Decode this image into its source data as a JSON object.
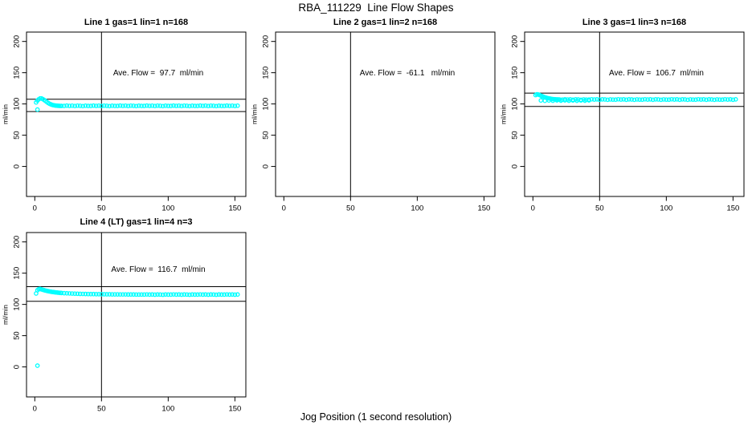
{
  "figure": {
    "main_title": "RBA_111229  Line Flow Shapes",
    "x_axis_label": "Jog Position (1 second resolution)",
    "colors": {
      "points": "#00ffff",
      "axis": "#000000",
      "background": "#ffffff"
    }
  },
  "chart_data": [
    {
      "type": "scatter",
      "title": "Line 1 gas=1 lin=1 n=168",
      "ylabel": "ml/min",
      "annotation": "Ave. Flow =  97.7  ml/min",
      "ave_flow": 97.7,
      "xlim": [
        -6.2,
        158.2
      ],
      "ylim": [
        -48,
        215
      ],
      "xticks": [
        0,
        50,
        100,
        150
      ],
      "yticks": [
        0,
        50,
        100,
        150,
        200
      ],
      "vline_x": 50,
      "hlines": [
        107.5,
        87.9
      ],
      "points": [
        [
          2,
          91
        ],
        [
          1,
          102.5
        ],
        [
          2,
          105.5
        ],
        [
          3,
          107.5
        ],
        [
          4,
          108.8
        ],
        [
          5,
          108.9
        ],
        [
          6,
          107.8
        ],
        [
          7,
          106.4
        ],
        [
          8,
          104.8
        ],
        [
          9,
          103.2
        ],
        [
          10,
          101.7
        ],
        [
          11,
          100.4
        ],
        [
          12,
          99.4
        ],
        [
          13,
          98.6
        ],
        [
          14,
          98
        ],
        [
          15,
          97.6
        ],
        [
          16,
          97.3
        ],
        [
          17,
          97.1
        ],
        [
          18,
          97
        ],
        [
          19,
          96.9
        ],
        [
          20,
          96.9
        ],
        [
          22,
          96.8
        ],
        [
          24,
          97.3
        ],
        [
          26,
          96.9
        ],
        [
          28,
          97.2
        ],
        [
          30,
          96.7
        ],
        [
          32,
          97.2
        ],
        [
          34,
          97
        ],
        [
          36,
          96.6
        ],
        [
          38,
          97.1
        ],
        [
          40,
          96.8
        ],
        [
          42,
          96.8
        ],
        [
          44,
          97.3
        ],
        [
          46,
          96.9
        ],
        [
          48,
          97.2
        ],
        [
          50,
          96.7
        ],
        [
          52,
          97.2
        ],
        [
          54,
          97
        ],
        [
          56,
          96.6
        ],
        [
          58,
          97.1
        ],
        [
          60,
          96.8
        ],
        [
          62,
          96.8
        ],
        [
          64,
          97.3
        ],
        [
          66,
          96.9
        ],
        [
          68,
          97.2
        ],
        [
          70,
          96.7
        ],
        [
          72,
          97.2
        ],
        [
          74,
          97
        ],
        [
          76,
          96.6
        ],
        [
          78,
          97.1
        ],
        [
          80,
          96.8
        ],
        [
          82,
          96.8
        ],
        [
          84,
          97.3
        ],
        [
          86,
          96.9
        ],
        [
          88,
          97.2
        ],
        [
          90,
          96.7
        ],
        [
          92,
          97.2
        ],
        [
          94,
          97
        ],
        [
          96,
          96.6
        ],
        [
          98,
          97.1
        ],
        [
          100,
          96.8
        ],
        [
          102,
          96.8
        ],
        [
          104,
          97.3
        ],
        [
          106,
          96.9
        ],
        [
          108,
          97.2
        ],
        [
          110,
          96.7
        ],
        [
          112,
          97.2
        ],
        [
          114,
          97
        ],
        [
          116,
          96.6
        ],
        [
          118,
          97.1
        ],
        [
          120,
          96.8
        ],
        [
          122,
          96.8
        ],
        [
          124,
          97.3
        ],
        [
          126,
          96.9
        ],
        [
          128,
          97.2
        ],
        [
          130,
          96.7
        ],
        [
          132,
          97.2
        ],
        [
          134,
          97
        ],
        [
          136,
          96.6
        ],
        [
          138,
          97.1
        ],
        [
          140,
          96.8
        ],
        [
          142,
          96.8
        ],
        [
          144,
          97.3
        ],
        [
          146,
          96.9
        ],
        [
          148,
          97.2
        ],
        [
          150,
          96.7
        ],
        [
          152,
          97.2
        ]
      ]
    },
    {
      "type": "scatter",
      "title": "Line 2 gas=1 lin=2 n=168",
      "ylabel": "ml/min",
      "annotation": "Ave. Flow =  -61.1   ml/min",
      "ave_flow": -61.1,
      "xlim": [
        -6.2,
        158.2
      ],
      "ylim": [
        -48,
        215
      ],
      "xticks": [
        0,
        50,
        100,
        150
      ],
      "yticks": [
        0,
        50,
        100,
        150,
        200
      ],
      "vline_x": 50,
      "hlines": [],
      "points": []
    },
    {
      "type": "scatter",
      "title": "Line 3 gas=1 lin=3 n=168",
      "ylabel": "ml/min",
      "annotation": "Ave. Flow =  106.7  ml/min",
      "ave_flow": 106.7,
      "xlim": [
        -6.2,
        158.2
      ],
      "ylim": [
        -48,
        215
      ],
      "xticks": [
        0,
        50,
        100,
        150
      ],
      "yticks": [
        0,
        50,
        100,
        150,
        200
      ],
      "vline_x": 50,
      "hlines": [
        117.4,
        96.0
      ],
      "points": [
        [
          2,
          114.2
        ],
        [
          3,
          115.4
        ],
        [
          4,
          115.1
        ],
        [
          5,
          114.3
        ],
        [
          6,
          113.3
        ],
        [
          7,
          112.4
        ],
        [
          8,
          111.5
        ],
        [
          9,
          110.7
        ],
        [
          10,
          110
        ],
        [
          11,
          109.4
        ],
        [
          12,
          108.9
        ],
        [
          13,
          108.5
        ],
        [
          14,
          108.1
        ],
        [
          15,
          107.8
        ],
        [
          16,
          107.6
        ],
        [
          17,
          107.4
        ],
        [
          18,
          107.3
        ],
        [
          19,
          107.2
        ],
        [
          20,
          107.1
        ],
        [
          6,
          105.6
        ],
        [
          9,
          105.1
        ],
        [
          12,
          105.7
        ],
        [
          15,
          105.2
        ],
        [
          18,
          105.8
        ],
        [
          21,
          105.3
        ],
        [
          24,
          105.8
        ],
        [
          27,
          105.2
        ],
        [
          30,
          105.6
        ],
        [
          33,
          105.1
        ],
        [
          36,
          105.7
        ],
        [
          39,
          105.3
        ],
        [
          42,
          105.8
        ],
        [
          22,
          106.9
        ],
        [
          24,
          107.5
        ],
        [
          26,
          107.1
        ],
        [
          28,
          107.4
        ],
        [
          30,
          106.8
        ],
        [
          32,
          107.4
        ],
        [
          34,
          107.2
        ],
        [
          36,
          106.7
        ],
        [
          38,
          107.3
        ],
        [
          40,
          107
        ],
        [
          42,
          106.9
        ],
        [
          44,
          107.5
        ],
        [
          46,
          107.1
        ],
        [
          48,
          107.4
        ],
        [
          50,
          106.8
        ],
        [
          52,
          107.4
        ],
        [
          54,
          107.2
        ],
        [
          56,
          106.7
        ],
        [
          58,
          107.3
        ],
        [
          60,
          107
        ],
        [
          62,
          106.9
        ],
        [
          64,
          107.5
        ],
        [
          66,
          107.1
        ],
        [
          68,
          107.4
        ],
        [
          70,
          106.8
        ],
        [
          72,
          107.4
        ],
        [
          74,
          107.2
        ],
        [
          76,
          106.7
        ],
        [
          78,
          107.3
        ],
        [
          80,
          107
        ],
        [
          82,
          106.9
        ],
        [
          84,
          107.5
        ],
        [
          86,
          107.1
        ],
        [
          88,
          107.4
        ],
        [
          90,
          106.8
        ],
        [
          92,
          107.4
        ],
        [
          94,
          107.2
        ],
        [
          96,
          106.7
        ],
        [
          98,
          107.3
        ],
        [
          100,
          107
        ],
        [
          102,
          106.9
        ],
        [
          104,
          107.5
        ],
        [
          106,
          107.1
        ],
        [
          108,
          107.4
        ],
        [
          110,
          106.8
        ],
        [
          112,
          107.4
        ],
        [
          114,
          107.2
        ],
        [
          116,
          106.7
        ],
        [
          118,
          107.3
        ],
        [
          120,
          107
        ],
        [
          122,
          106.9
        ],
        [
          124,
          107.5
        ],
        [
          126,
          107.1
        ],
        [
          128,
          107.4
        ],
        [
          130,
          106.8
        ],
        [
          132,
          107.4
        ],
        [
          134,
          107.2
        ],
        [
          136,
          106.7
        ],
        [
          138,
          107.3
        ],
        [
          140,
          107
        ],
        [
          142,
          106.9
        ],
        [
          144,
          107.5
        ],
        [
          146,
          107.1
        ],
        [
          148,
          107.4
        ],
        [
          150,
          106.8
        ],
        [
          152,
          107.4
        ]
      ]
    },
    {
      "type": "scatter",
      "title": "Line 4 (LT) gas=1 lin=4 n=3",
      "ylabel": "ml/min",
      "annotation": "Ave. Flow =  116.7  ml/min",
      "ave_flow": 116.7,
      "xlim": [
        -6.2,
        158.2
      ],
      "ylim": [
        -48,
        215
      ],
      "xticks": [
        0,
        50,
        100,
        150
      ],
      "yticks": [
        0,
        50,
        100,
        150,
        200
      ],
      "vline_x": 50,
      "hlines": [
        128.4,
        105.0
      ],
      "points": [
        [
          2,
          2
        ],
        [
          1,
          117.5
        ],
        [
          2,
          122.8
        ],
        [
          3,
          124.4
        ],
        [
          4,
          124.7
        ],
        [
          5,
          124.1
        ],
        [
          6,
          123.4
        ],
        [
          7,
          122.8
        ],
        [
          8,
          122.2
        ],
        [
          9,
          121.7
        ],
        [
          10,
          121.2
        ],
        [
          11,
          120.8
        ],
        [
          12,
          120.4
        ],
        [
          13,
          120
        ],
        [
          14,
          119.7
        ],
        [
          15,
          119.4
        ],
        [
          16,
          119.2
        ],
        [
          17,
          118.9
        ],
        [
          18,
          118.7
        ],
        [
          19,
          118.5
        ],
        [
          20,
          118.3
        ],
        [
          22,
          118
        ],
        [
          24,
          117.8
        ],
        [
          26,
          117.6
        ],
        [
          28,
          117.4
        ],
        [
          30,
          117.2
        ],
        [
          32,
          117.1
        ],
        [
          34,
          116.9
        ],
        [
          36,
          116.8
        ],
        [
          38,
          116.7
        ],
        [
          40,
          116.6
        ],
        [
          42,
          116.5
        ],
        [
          44,
          116.5
        ],
        [
          46,
          116.4
        ],
        [
          48,
          116.4
        ],
        [
          50,
          116.3
        ],
        [
          52,
          116.3
        ],
        [
          54,
          116.2
        ],
        [
          56,
          116.2
        ],
        [
          58,
          116.1
        ],
        [
          60,
          116.1
        ],
        [
          62,
          116.1
        ],
        [
          64,
          116
        ],
        [
          66,
          116
        ],
        [
          68,
          116
        ],
        [
          70,
          115.9
        ],
        [
          72,
          115.9
        ],
        [
          74,
          115.9
        ],
        [
          76,
          115.8
        ],
        [
          78,
          115.8
        ],
        [
          80,
          115.8
        ],
        [
          82,
          115.8
        ],
        [
          84,
          116
        ],
        [
          86,
          115.7
        ],
        [
          88,
          115.9
        ],
        [
          90,
          115.6
        ],
        [
          92,
          115.9
        ],
        [
          94,
          115.8
        ],
        [
          96,
          115.5
        ],
        [
          98,
          115.9
        ],
        [
          100,
          115.7
        ],
        [
          102,
          115.7
        ],
        [
          104,
          116
        ],
        [
          106,
          115.7
        ],
        [
          108,
          115.9
        ],
        [
          110,
          115.6
        ],
        [
          112,
          115.9
        ],
        [
          114,
          115.8
        ],
        [
          116,
          115.5
        ],
        [
          118,
          115.9
        ],
        [
          120,
          115.7
        ],
        [
          122,
          115.7
        ],
        [
          124,
          116
        ],
        [
          126,
          115.7
        ],
        [
          128,
          115.9
        ],
        [
          130,
          115.6
        ],
        [
          132,
          115.9
        ],
        [
          134,
          115.8
        ],
        [
          136,
          115.5
        ],
        [
          138,
          115.9
        ],
        [
          140,
          115.7
        ],
        [
          142,
          115.7
        ],
        [
          144,
          116
        ],
        [
          146,
          115.7
        ],
        [
          148,
          115.9
        ],
        [
          150,
          115.6
        ],
        [
          152,
          115.9
        ]
      ]
    }
  ]
}
